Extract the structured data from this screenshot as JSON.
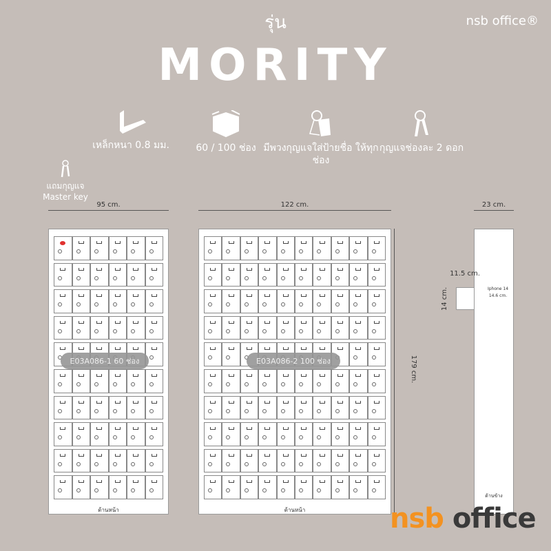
{
  "header": {
    "subtitle": "รุ่น",
    "title": "MORITY",
    "brand": "nsb office®"
  },
  "features": [
    {
      "icon": "steel-angle-icon",
      "label": "เหล็กหนา 0.8 มม."
    },
    {
      "icon": "box-icon",
      "label": "60 / 100 ช่อง"
    },
    {
      "icon": "key-tag-icon",
      "label": "มีพวงกุญแจใส่ป้ายชื่อ ให้ทุกช่อง"
    },
    {
      "icon": "keys-icon",
      "label": "กุญแจช่องละ 2 ดอก"
    }
  ],
  "master_key": {
    "icon": "master-key-icon",
    "line1": "แถมกุญแจ",
    "line2": "Master key"
  },
  "cabinets": [
    {
      "width": "95 cm.",
      "model": "E03A086-1   60 ช่อง",
      "front_label": "ด้านหน้า",
      "cols": 6,
      "rows": 10
    },
    {
      "width": "122 cm.",
      "model": "E03A086-2   100 ช่อง",
      "front_label": "ด้านหน้า",
      "cols": 10,
      "rows": 10,
      "height": "179 cm."
    }
  ],
  "side": {
    "depth": "23 cm.",
    "slot_width": "11.5 cm.",
    "slot_height": "14 cm.",
    "phone": "Iphone 14",
    "phone_size": "14.6 cm.",
    "label": "ด้านข้าง"
  },
  "logo": {
    "part1": "nsb",
    "part2": " office",
    "colors": {
      "nsb": "#f39221",
      "office": "#3a3a3a"
    }
  },
  "colors": {
    "background": "#c5bdb8",
    "master_lock": "#e0312f"
  }
}
